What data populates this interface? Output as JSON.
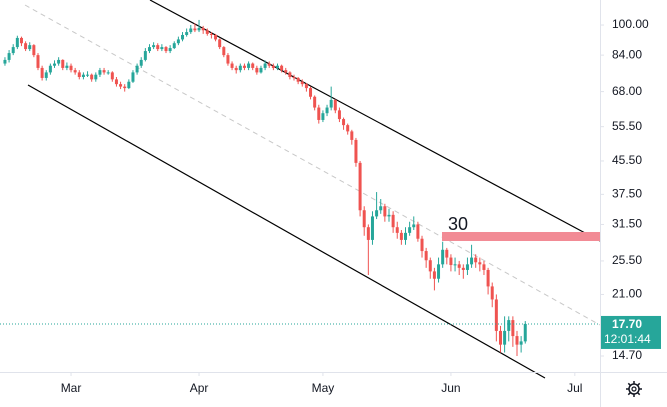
{
  "chart_data": {
    "type": "candlestick",
    "up_color": "#26a69a",
    "down_color": "#ef5350",
    "log_scale": true,
    "grid": false,
    "xlim": [
      -1.2,
      144.1
    ],
    "xticks": [
      {
        "value": 16,
        "label": "Mar"
      },
      {
        "value": 47,
        "label": "Apr"
      },
      {
        "value": 77,
        "label": "May"
      },
      {
        "value": 108,
        "label": "Jun"
      },
      {
        "value": 138,
        "label": "Jul"
      }
    ],
    "ylim": [
      13.4,
      115.6
    ],
    "yticks": [
      {
        "value": 100,
        "label": "100.00"
      },
      {
        "value": 84,
        "label": "84.00"
      },
      {
        "value": 68,
        "label": "68.00"
      },
      {
        "value": 55.5,
        "label": "55.50"
      },
      {
        "value": 45.5,
        "label": "45.50"
      },
      {
        "value": 37.5,
        "label": "37.50"
      },
      {
        "value": 31.5,
        "label": "31.50"
      },
      {
        "value": 25.5,
        "label": "25.50"
      },
      {
        "value": 21,
        "label": "21.00"
      },
      {
        "value": 14.7,
        "label": "14.70"
      }
    ],
    "annotation": "30",
    "last_price": {
      "value": 17.7,
      "label": "17.70"
    },
    "countdown": "12:01:44",
    "open": [
      80,
      81.7,
      85,
      88,
      92.8,
      90,
      87,
      89,
      84,
      78,
      73.6,
      76,
      79,
      80,
      81.7,
      78,
      79,
      77,
      76,
      74,
      75,
      75,
      73,
      75,
      77,
      76,
      76,
      73,
      71,
      70,
      69.4,
      72,
      76,
      79,
      81.7,
      86,
      88,
      89,
      87,
      88,
      86,
      87.5,
      90,
      92,
      94.4,
      96,
      98,
      97,
      98.3,
      97,
      95,
      94.4,
      92,
      88,
      84,
      80,
      78,
      77,
      79,
      78,
      80,
      78,
      76,
      78,
      80,
      79,
      78,
      79,
      77,
      76,
      74,
      73.6,
      72,
      71,
      69.4,
      66,
      62,
      57.7,
      60,
      62,
      64.8,
      61,
      58,
      56,
      54,
      51.4,
      45,
      34.2,
      31,
      28.8,
      33,
      34.2,
      35,
      33,
      33.3,
      31,
      30,
      28.8,
      30,
      31,
      31.5,
      29,
      27,
      25.6,
      24,
      23,
      25,
      27.2,
      26,
      24.9,
      25,
      24.5,
      24.2,
      25,
      26,
      25.3,
      25,
      24.2,
      22,
      20.4,
      17,
      15.7,
      17,
      18.1,
      16.5,
      15.7,
      16
    ],
    "high": [
      83,
      86.5,
      89.5,
      94,
      93.5,
      91,
      90.5,
      89.5,
      85,
      79,
      77,
      80,
      81.5,
      83,
      82,
      80.5,
      80,
      78,
      77,
      76,
      76.5,
      75.5,
      76,
      78,
      78,
      77,
      76.5,
      74,
      72,
      71,
      73,
      77,
      80,
      83,
      87.5,
      89.5,
      90.5,
      90,
      89.5,
      88.5,
      89,
      91,
      93.5,
      96,
      98,
      100,
      101,
      103,
      99.5,
      98,
      96,
      95,
      92.5,
      88.5,
      85,
      81,
      79,
      80,
      80,
      81,
      80.5,
      79,
      79,
      81.5,
      81,
      80,
      80,
      79.5,
      78,
      76.5,
      75,
      74,
      73,
      71.5,
      70,
      66.5,
      63,
      61,
      63,
      70,
      65,
      62,
      58.5,
      56.5,
      54.5,
      52,
      45.5,
      35,
      31.5,
      34,
      38,
      36.5,
      35.5,
      34.5,
      34,
      32,
      30.5,
      31,
      32,
      33,
      32,
      29.5,
      27.5,
      26,
      24.5,
      26,
      28.5,
      27.5,
      26.5,
      26,
      25.5,
      25,
      26,
      28,
      26.5,
      26,
      25.5,
      24.5,
      22.5,
      21,
      17.5,
      18.5,
      18.5,
      18.5,
      17,
      16.5,
      18
    ],
    "low": [
      79,
      80.5,
      84,
      87,
      88.5,
      86,
      86,
      83,
      77,
      72.5,
      72.5,
      75,
      78,
      79,
      77,
      77,
      76,
      75,
      73,
      73,
      74,
      72,
      72,
      74,
      75,
      75,
      72,
      70,
      69,
      68,
      69,
      71.5,
      75,
      78,
      81,
      85,
      87,
      86,
      86,
      85,
      85,
      87,
      89,
      91,
      93.5,
      95,
      96,
      96,
      95,
      94,
      92.5,
      91,
      87,
      83,
      79,
      77,
      75.5,
      76,
      77,
      77,
      77,
      75,
      75.5,
      77,
      78,
      77,
      77,
      76,
      75,
      73,
      72.5,
      71,
      70,
      68,
      65,
      61,
      56.5,
      57,
      59,
      61,
      60,
      57,
      54.5,
      53,
      50,
      44,
      33,
      29.5,
      23.5,
      28,
      32.5,
      33.5,
      32,
      32,
      30,
      29,
      28,
      28,
      29.5,
      30.5,
      28.5,
      26,
      24.5,
      23,
      21.5,
      22.5,
      24.5,
      25,
      24,
      24,
      23.5,
      23,
      23.5,
      24.5,
      24.5,
      24,
      23.5,
      21,
      19.5,
      16,
      15,
      15,
      16,
      15.5,
      14.7,
      15,
      15.8
    ],
    "close": [
      81.7,
      85,
      88,
      92.8,
      90,
      87,
      89,
      84,
      78,
      73.6,
      76,
      79,
      80,
      81.7,
      78,
      79,
      77,
      76,
      74,
      75,
      75,
      73,
      75,
      77,
      76,
      76,
      73,
      71,
      70,
      69.4,
      72,
      76,
      79,
      81.7,
      86,
      88,
      89,
      87,
      88,
      86,
      87.5,
      90,
      92,
      94.4,
      96,
      98,
      97,
      98.3,
      97,
      95,
      94.4,
      92,
      88,
      84,
      80,
      78,
      77,
      79,
      78,
      80,
      78,
      76,
      78,
      80,
      79,
      78,
      79,
      77,
      76,
      74,
      73.6,
      72,
      71,
      69.4,
      66,
      62,
      57.7,
      60,
      62,
      64.8,
      61,
      58,
      56,
      54,
      51.4,
      45,
      34.2,
      31,
      28.8,
      33,
      34.2,
      35,
      33,
      33.3,
      31,
      30,
      28.8,
      30,
      31,
      31.5,
      29,
      27,
      25.6,
      24,
      23,
      25,
      27.2,
      26,
      24.9,
      25,
      24.5,
      24.2,
      25,
      26,
      25.3,
      25,
      24.2,
      22,
      20.4,
      17,
      15.7,
      17,
      18.1,
      16.5,
      15.7,
      16,
      17.7
    ]
  }
}
